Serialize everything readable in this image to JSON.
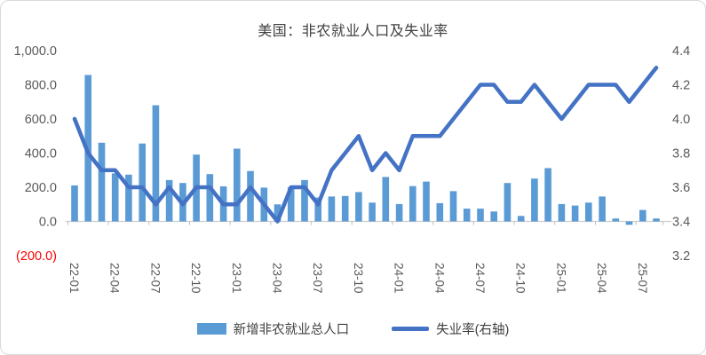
{
  "chart": {
    "title": "美国：非农就业人口及失业率"
  },
  "chart_data": {
    "type": "bar+line",
    "title": "美国：非农就业人口及失业率",
    "grid": false,
    "legend_position": "bottom",
    "x_tick_every": 3,
    "categories": [
      "22-01",
      "22-02",
      "22-03",
      "22-04",
      "22-05",
      "22-06",
      "22-07",
      "22-08",
      "22-09",
      "22-10",
      "22-11",
      "22-12",
      "23-01",
      "23-02",
      "23-03",
      "23-04",
      "23-05",
      "23-06",
      "23-07",
      "23-08",
      "23-09",
      "23-10",
      "23-11",
      "23-12",
      "24-01",
      "24-02",
      "24-03",
      "24-04",
      "24-05",
      "24-06",
      "24-07",
      "24-08",
      "24-09",
      "24-10",
      "24-11",
      "24-12",
      "25-01",
      "25-02",
      "25-03",
      "25-04",
      "25-05",
      "25-06",
      "25-07",
      "25-08"
    ],
    "series": [
      {
        "name": "新增非农就业总人口",
        "type": "bar",
        "axis": "left",
        "color": "#5B9BD5",
        "values": [
          211,
          857,
          461,
          281,
          274,
          456,
          680,
          242,
          225,
          391,
          277,
          205,
          426,
          295,
          198,
          100,
          200,
          242,
          140,
          146,
          149,
          172,
          110,
          260,
          102,
          207,
          233,
          107,
          177,
          75,
          75,
          58,
          225,
          32,
          251,
          312,
          102,
          93,
          110,
          146,
          17,
          -20,
          67,
          17
        ]
      },
      {
        "name": "失业率(右轴)",
        "type": "line",
        "axis": "right",
        "color": "#4472C4",
        "values": [
          4.0,
          3.8,
          3.7,
          3.7,
          3.6,
          3.6,
          3.5,
          3.6,
          3.5,
          3.6,
          3.6,
          3.5,
          3.5,
          3.6,
          3.5,
          3.4,
          3.6,
          3.6,
          3.5,
          3.7,
          3.8,
          3.9,
          3.7,
          3.8,
          3.7,
          3.9,
          3.9,
          3.9,
          4.0,
          4.1,
          4.2,
          4.2,
          4.1,
          4.1,
          4.2,
          4.1,
          4.0,
          4.1,
          4.2,
          4.2,
          4.2,
          4.1,
          4.2,
          4.3
        ]
      }
    ],
    "left_axis": {
      "range": [
        -200,
        1000
      ],
      "ticks": [
        {
          "label": "1,000.0",
          "value": 1000
        },
        {
          "label": "800.0",
          "value": 800
        },
        {
          "label": "600.0",
          "value": 600
        },
        {
          "label": "400.0",
          "value": 400
        },
        {
          "label": "200.0",
          "value": 200
        },
        {
          "label": "0.0",
          "value": 0
        },
        {
          "label": "(200.0)",
          "value": -200,
          "color": "#FF0000"
        }
      ]
    },
    "right_axis": {
      "range": [
        3.2,
        4.4
      ],
      "ticks": [
        {
          "label": "4.4",
          "value": 4.4
        },
        {
          "label": "4.2",
          "value": 4.2
        },
        {
          "label": "4.0",
          "value": 4.0
        },
        {
          "label": "3.8",
          "value": 3.8
        },
        {
          "label": "3.6",
          "value": 3.6
        },
        {
          "label": "3.4",
          "value": 3.4
        },
        {
          "label": "3.2",
          "value": 3.2
        }
      ]
    },
    "colors": {
      "axis_text": "#595959",
      "negative_tick": "#FF0000",
      "axis_line": "#D0CECE",
      "tick_mark": "#BFBFBF",
      "border": "#D9D9D9"
    }
  }
}
